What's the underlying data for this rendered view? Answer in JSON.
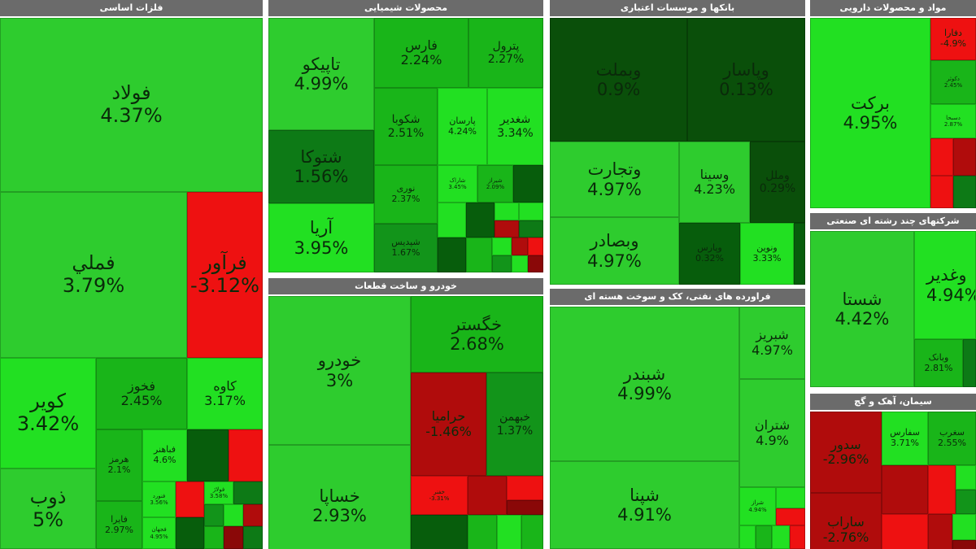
{
  "sectors": {
    "metals": {
      "title": "فلزات اساسی",
      "tiles": [
        {
          "name": "فولاد",
          "pct": "4.37%"
        },
        {
          "name": "فملي",
          "pct": "3.79%"
        },
        {
          "name": "فرآور",
          "pct": "-3.12%"
        },
        {
          "name": "کویر",
          "pct": "3.42%"
        },
        {
          "name": "فخوز",
          "pct": "2.45%"
        },
        {
          "name": "کاوه",
          "pct": "3.17%"
        },
        {
          "name": "ذوب",
          "pct": "5%"
        },
        {
          "name": "هرمز",
          "pct": "2.1%"
        },
        {
          "name": "فباهنر",
          "pct": "4.6%"
        },
        {
          "name": "فایرا",
          "pct": "2.97%"
        },
        {
          "name": "فنورد",
          "pct": "3.56%"
        },
        {
          "name": "فجهان",
          "pct": "4.95%"
        },
        {
          "name": "فولاژ",
          "pct": "3.58%"
        }
      ]
    },
    "chem": {
      "title": "محصولات شیمیایی",
      "tiles": [
        {
          "name": "تاپیکو",
          "pct": "4.99%"
        },
        {
          "name": "فارس",
          "pct": "2.24%"
        },
        {
          "name": "پترول",
          "pct": "2.27%"
        },
        {
          "name": "شکوبا",
          "pct": "2.51%"
        },
        {
          "name": "پارسان",
          "pct": "4.24%"
        },
        {
          "name": "شغدیر",
          "pct": "3.34%"
        },
        {
          "name": "شتوکا",
          "pct": "1.56%"
        },
        {
          "name": "نوری",
          "pct": "2.37%"
        },
        {
          "name": "شاراک",
          "pct": "3.45%"
        },
        {
          "name": "شیراز",
          "pct": "2.09%"
        },
        {
          "name": "آریا",
          "pct": "3.95%"
        },
        {
          "name": "شپدیس",
          "pct": "1.67%"
        }
      ]
    },
    "banks": {
      "title": "بانکها و موسسات اعتباری",
      "tiles": [
        {
          "name": "وبملت",
          "pct": "0.9%"
        },
        {
          "name": "وپاسار",
          "pct": "0.13%"
        },
        {
          "name": "وتجارت",
          "pct": "4.97%"
        },
        {
          "name": "وسینا",
          "pct": "4.23%"
        },
        {
          "name": "وملل",
          "pct": "0.29%"
        },
        {
          "name": "وبصادر",
          "pct": "4.97%"
        },
        {
          "name": "وپارس",
          "pct": "0.32%"
        },
        {
          "name": "ونوین",
          "pct": "3.33%"
        }
      ]
    },
    "pharma": {
      "title": "مواد و محصولات دارویی",
      "tiles": [
        {
          "name": "برکت",
          "pct": "4.95%"
        },
        {
          "name": "دفارا",
          "pct": "-4.9%"
        },
        {
          "name": "دکوثر",
          "pct": "2.45%"
        },
        {
          "name": "دسبحا",
          "pct": "2.87%"
        }
      ]
    },
    "auto": {
      "title": "خودرو و ساخت قطعات",
      "tiles": [
        {
          "name": "خودرو",
          "pct": "3%"
        },
        {
          "name": "خگستر",
          "pct": "2.68%"
        },
        {
          "name": "حرامیا",
          "pct": "-1.46%"
        },
        {
          "name": "خبهمن",
          "pct": "1.37%"
        },
        {
          "name": "خساپا",
          "pct": "2.93%"
        },
        {
          "name": "خفنر",
          "pct": "-3.31%"
        }
      ]
    },
    "oil": {
      "title": "فراورده های نفتی، کک و سوخت هسته ای",
      "tiles": [
        {
          "name": "شبندر",
          "pct": "4.99%"
        },
        {
          "name": "شبریز",
          "pct": "4.97%"
        },
        {
          "name": "شتران",
          "pct": "4.9%"
        },
        {
          "name": "شپنا",
          "pct": "4.91%"
        },
        {
          "name": "شراز",
          "pct": "4.94%"
        }
      ]
    },
    "multi": {
      "title": "شرکتهای چند رشته ای صنعتی",
      "tiles": [
        {
          "name": "شستا",
          "pct": "4.42%"
        },
        {
          "name": "وغدیر",
          "pct": "4.94%"
        },
        {
          "name": "وبانک",
          "pct": "2.81%"
        }
      ]
    },
    "cement": {
      "title": "سیمان، آهک و گچ",
      "tiles": [
        {
          "name": "سدور",
          "pct": "-2.96%"
        },
        {
          "name": "سفارس",
          "pct": "3.71%"
        },
        {
          "name": "سغرب",
          "pct": "2.55%"
        },
        {
          "name": "ساراب",
          "pct": "-2.76%"
        }
      ]
    }
  }
}
